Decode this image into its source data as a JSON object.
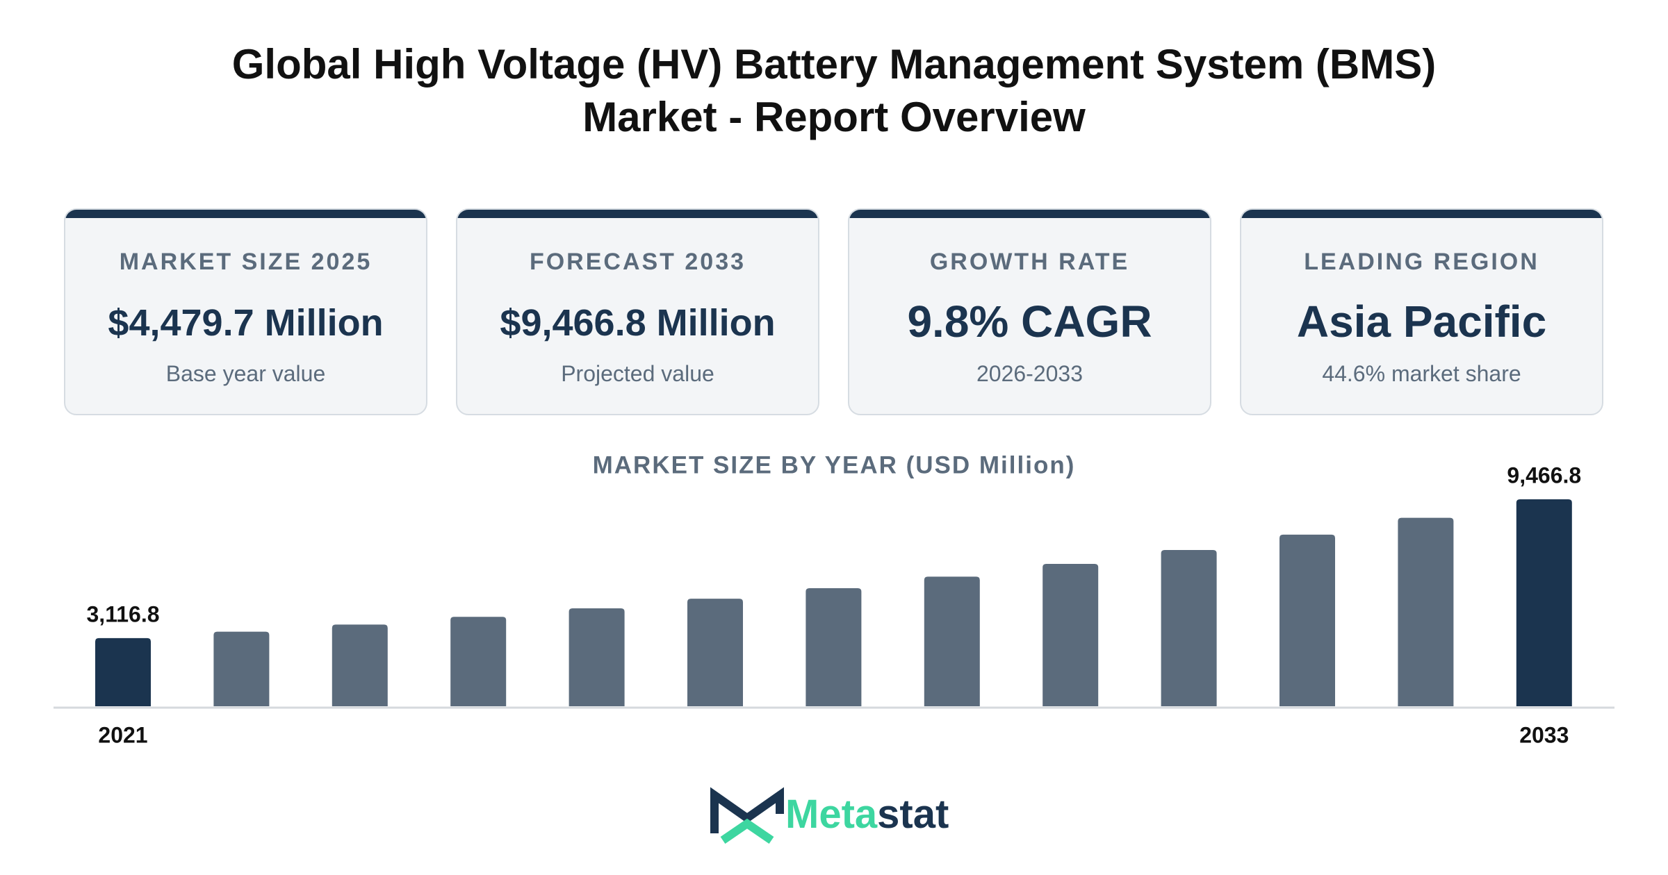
{
  "header": {
    "title_line1": "Global High Voltage (HV) Battery Management System (BMS)",
    "title_line2": "Market - Report Overview"
  },
  "cards": [
    {
      "label": "MARKET SIZE 2025",
      "value": "$4,479.7 Million",
      "note": "Base year value"
    },
    {
      "label": "FORECAST 2033",
      "value": "$9,466.8 Million",
      "note": "Projected value"
    },
    {
      "label": "GROWTH RATE",
      "value": "9.8% CAGR",
      "note": "2026-2033"
    },
    {
      "label": "LEADING REGION",
      "value": "Asia Pacific",
      "note": "44.6% market share"
    }
  ],
  "chart_data": {
    "type": "bar",
    "title": "MARKET SIZE BY YEAR (USD Million)",
    "categories": [
      "2021",
      null,
      null,
      null,
      null,
      null,
      null,
      null,
      null,
      null,
      null,
      null,
      "2033"
    ],
    "values": [
      3116.8,
      3413,
      3737,
      4092,
      4479.7,
      4918.7,
      5400.7,
      5930,
      6511.1,
      7149.2,
      7849.8,
      8619.1,
      9466.8
    ],
    "value_labels": [
      "3,116.8",
      null,
      null,
      null,
      null,
      null,
      null,
      null,
      null,
      null,
      null,
      null,
      "9,466.8"
    ],
    "colors": [
      "#1b344f",
      "#5b6b7c",
      "#5b6b7c",
      "#5b6b7c",
      "#5b6b7c",
      "#5b6b7c",
      "#5b6b7c",
      "#5b6b7c",
      "#5b6b7c",
      "#5b6b7c",
      "#5b6b7c",
      "#5b6b7c",
      "#1b344f"
    ]
  },
  "brand": {
    "part1": "Meta",
    "part2": "stat"
  }
}
